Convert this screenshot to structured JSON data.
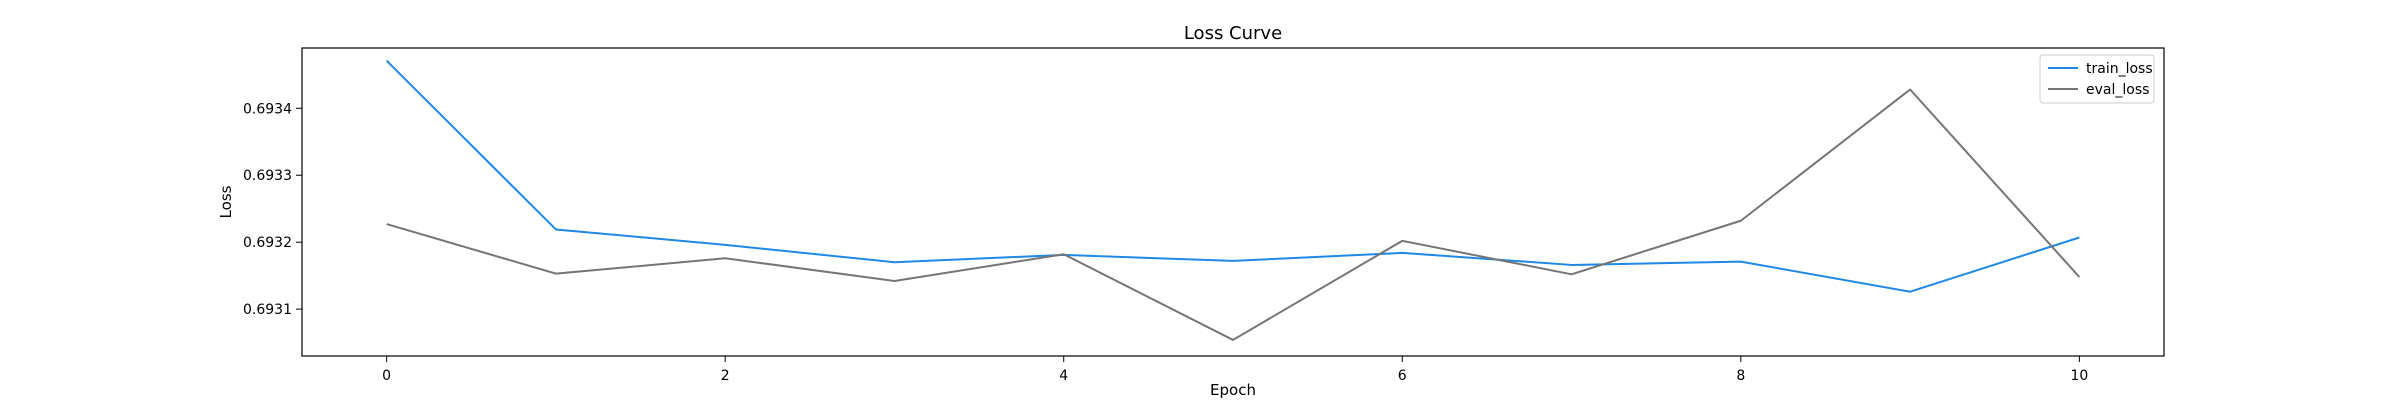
{
  "chart_data": {
    "type": "line",
    "title": "Loss Curve",
    "xlabel": "Epoch",
    "ylabel": "Loss",
    "x": [
      0,
      1,
      2,
      3,
      4,
      5,
      6,
      7,
      8,
      9,
      10
    ],
    "xticks": [
      0,
      2,
      4,
      6,
      8,
      10
    ],
    "yticks": [
      0.6931,
      0.6932,
      0.6933,
      0.6934
    ],
    "ytick_labels": [
      "0.6931",
      "0.6932",
      "0.6933",
      "0.6934"
    ],
    "xlim": [
      -0.5,
      10.5
    ],
    "ylim": [
      0.69303,
      0.69349
    ],
    "grid": false,
    "legend_position": "top-right",
    "series": [
      {
        "name": "train_loss",
        "color": "#1f88e5",
        "values": [
          0.693471,
          0.693219,
          0.693196,
          0.69317,
          0.693181,
          0.693172,
          0.693184,
          0.693166,
          0.693171,
          0.693126,
          0.693207
        ]
      },
      {
        "name": "eval_loss",
        "color": "#757575",
        "values": [
          0.693227,
          0.693153,
          0.693176,
          0.693142,
          0.693182,
          0.693054,
          0.693202,
          0.693152,
          0.693232,
          0.693428,
          0.693148
        ]
      }
    ]
  }
}
